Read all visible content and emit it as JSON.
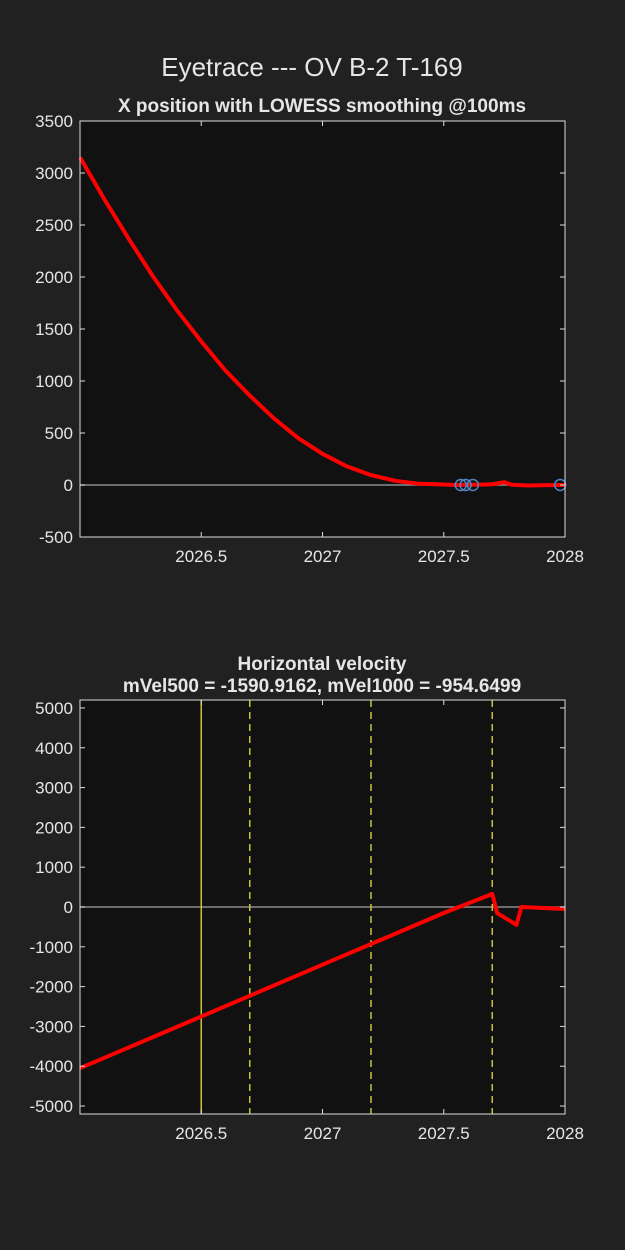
{
  "figure": {
    "title": "Eyetrace --- OV B-2 T-169",
    "colors": {
      "background": "#212121",
      "axes": "#111111",
      "text": "#e6e6e6",
      "trace": "#ff0000",
      "zero_line": "#8c8c8c",
      "marker": "#4f86c6",
      "event_line": "#c8c43a"
    }
  },
  "chart_data": [
    {
      "type": "line",
      "title": "X position with LOWESS smoothing @100ms",
      "xlim": [
        2026.0,
        2028.0
      ],
      "ylim": [
        -500,
        3500
      ],
      "xticks": [
        2026.5,
        2027,
        2027.5,
        2028
      ],
      "xtick_labels": [
        "2026.5",
        "2027",
        "2027.5",
        "2028"
      ],
      "yticks": [
        3500,
        3000,
        2500,
        2000,
        1500,
        1000,
        500,
        0,
        -500
      ],
      "ytick_labels": [
        "3500",
        "3000",
        "2500",
        "2000",
        "1500",
        "1000",
        "500",
        "0",
        "-500"
      ],
      "zero_line": 0,
      "series": [
        {
          "x": [
            2026.0,
            2026.1,
            2026.2,
            2026.3,
            2026.4,
            2026.5,
            2026.6,
            2026.7,
            2026.8,
            2026.9,
            2027.0,
            2027.1,
            2027.2,
            2027.3,
            2027.4,
            2027.5,
            2027.55,
            2027.6,
            2027.65,
            2027.7,
            2027.75,
            2027.78,
            2027.85,
            2027.9,
            2027.98,
            2028.0
          ],
          "y": [
            3150,
            2750,
            2370,
            2010,
            1680,
            1380,
            1100,
            860,
            640,
            450,
            300,
            180,
            95,
            40,
            12,
            5,
            0,
            2,
            4,
            8,
            28,
            2,
            -5,
            -3,
            0,
            0
          ]
        }
      ],
      "markers": {
        "x": [
          2027.57,
          2027.59,
          2027.62,
          2027.98
        ],
        "y": [
          0,
          0,
          0,
          0
        ]
      }
    },
    {
      "type": "line",
      "title": "Horizontal velocity",
      "subtitle": "mVel500 = -1590.9162, mVel1000 = -954.6499",
      "xlim": [
        2026.0,
        2028.0
      ],
      "ylim": [
        -5200,
        5200
      ],
      "xticks": [
        2026.5,
        2027,
        2027.5,
        2028
      ],
      "xtick_labels": [
        "2026.5",
        "2027",
        "2027.5",
        "2028"
      ],
      "yticks": [
        5000,
        4000,
        3000,
        2000,
        1000,
        0,
        -1000,
        -2000,
        -3000,
        -4000,
        -5000
      ],
      "ytick_labels": [
        "5000",
        "4000",
        "3000",
        "2000",
        "1000",
        "0",
        "-1000",
        "-2000",
        "-3000",
        "-4000",
        "-5000"
      ],
      "zero_line": 0,
      "vlines": [
        {
          "x": 2026.5,
          "style": "solid"
        },
        {
          "x": 2026.7,
          "style": "dashed"
        },
        {
          "x": 2027.2,
          "style": "dashed"
        },
        {
          "x": 2027.7,
          "style": "dashed"
        }
      ],
      "series": [
        {
          "x": [
            2026.0,
            2026.5,
            2027.0,
            2027.5,
            2027.7,
            2027.72,
            2027.8,
            2027.82,
            2028.0
          ],
          "y": [
            -4050,
            -2750,
            -1450,
            -150,
            330,
            -150,
            -450,
            0,
            -50
          ]
        }
      ]
    }
  ]
}
